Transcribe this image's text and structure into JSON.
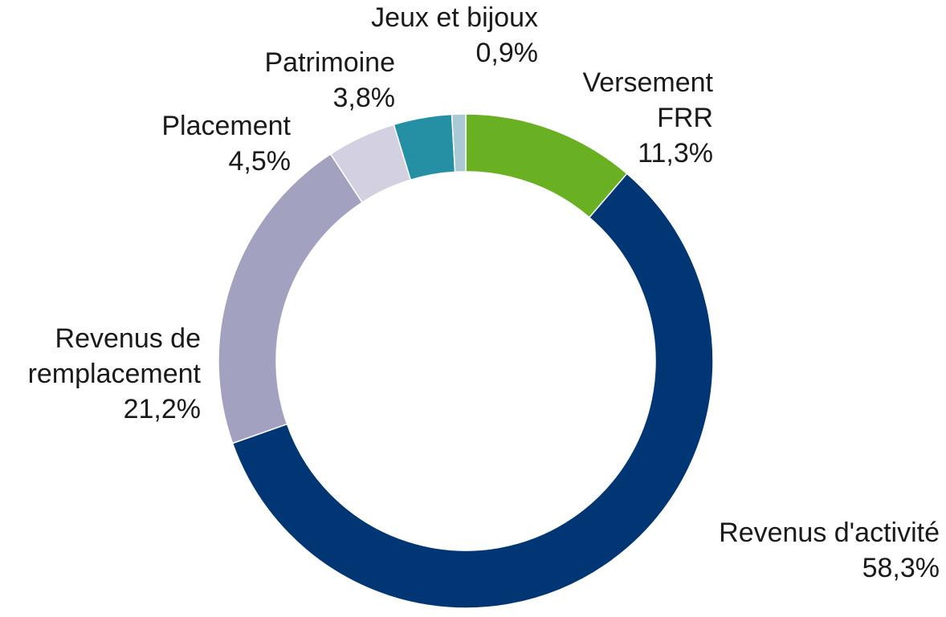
{
  "chart_data": {
    "type": "donut",
    "categories": [
      "Versement\nFRR",
      "Revenus d'activité",
      "Revenus de\nremplacement",
      "Placement",
      "Patrimoine",
      "Jeux et bijoux"
    ],
    "values": [
      11.3,
      58.3,
      21.2,
      4.5,
      3.8,
      0.9
    ],
    "value_labels": [
      "11,3%",
      "58,3%",
      "21,2%",
      "4,5%",
      "3,8%",
      "0,9%"
    ],
    "colors": [
      "#6ab023",
      "#003673",
      "#a3a1c0",
      "#d3d1e1",
      "#2590a4",
      "#a9c9d5"
    ]
  }
}
